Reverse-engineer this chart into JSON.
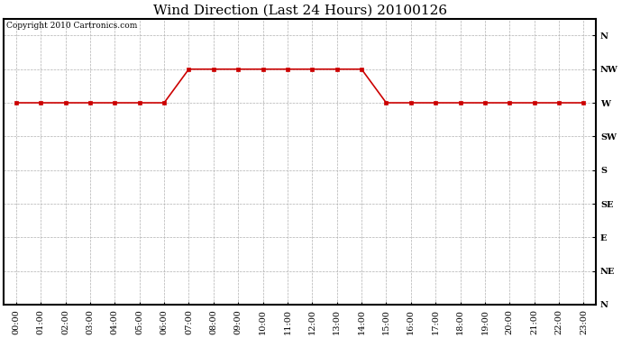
{
  "title": "Wind Direction (Last 24 Hours) 20100126",
  "copyright_text": "Copyright 2010 Cartronics.com",
  "background_color": "#ffffff",
  "plot_bg_color": "#ffffff",
  "line_color": "#cc0000",
  "grid_color": "#b0b0b0",
  "x_hours": [
    0,
    1,
    2,
    3,
    4,
    5,
    6,
    7,
    8,
    9,
    10,
    11,
    12,
    13,
    14,
    15,
    16,
    17,
    18,
    19,
    20,
    21,
    22,
    23
  ],
  "wind_values": [
    6,
    6,
    6,
    6,
    6,
    6,
    6,
    7,
    7,
    7,
    7,
    7,
    7,
    7,
    7,
    6,
    6,
    6,
    6,
    6,
    6,
    6,
    6,
    6
  ],
  "y_tick_labels": [
    "N",
    "NE",
    "E",
    "SE",
    "S",
    "SW",
    "W",
    "NW",
    "N"
  ],
  "title_fontsize": 11,
  "tick_fontsize": 7,
  "copyright_fontsize": 6.5,
  "marker_size": 3,
  "line_width": 1.2
}
